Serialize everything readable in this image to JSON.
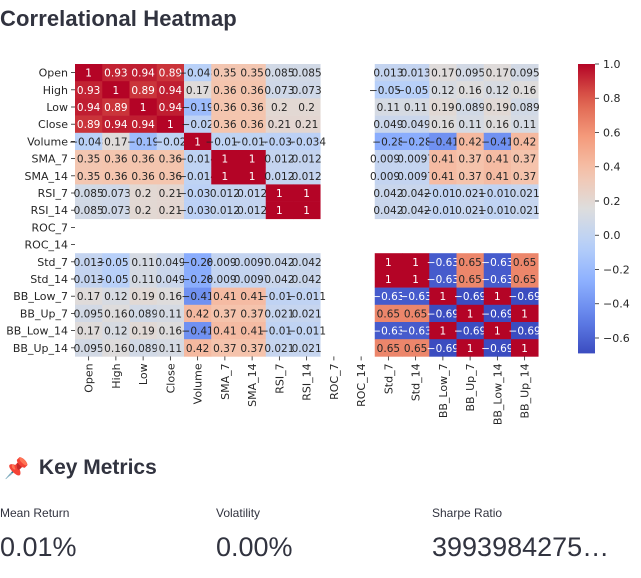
{
  "page_title": "Correlational Heatmap",
  "chart_data": {
    "type": "heatmap",
    "title": "",
    "labels": [
      "Open",
      "High",
      "Low",
      "Close",
      "Volume",
      "SMA_7",
      "SMA_14",
      "RSI_7",
      "RSI_14",
      "ROC_7",
      "ROC_14",
      "Std_7",
      "Std_14",
      "BB_Low_7",
      "BB_Up_7",
      "BB_Low_14",
      "BB_Up_14"
    ],
    "values": [
      [
        1,
        0.93,
        0.94,
        0.89,
        -0.048,
        0.35,
        0.35,
        0.085,
        0.085,
        null,
        null,
        0.013,
        0.013,
        0.17,
        0.095,
        0.17,
        0.095
      ],
      [
        0.93,
        1,
        0.89,
        0.94,
        0.17,
        0.36,
        0.36,
        0.073,
        0.073,
        null,
        null,
        -0.057,
        -0.057,
        0.12,
        0.16,
        0.12,
        0.16
      ],
      [
        0.94,
        0.89,
        1,
        0.94,
        -0.19,
        0.36,
        0.36,
        0.2,
        0.2,
        null,
        null,
        0.11,
        0.11,
        0.19,
        0.089,
        0.19,
        0.089
      ],
      [
        0.89,
        0.94,
        0.94,
        1,
        -0.02,
        0.36,
        0.36,
        0.21,
        0.21,
        null,
        null,
        0.049,
        0.049,
        0.16,
        0.11,
        0.16,
        0.11
      ],
      [
        -0.048,
        0.17,
        -0.19,
        -0.02,
        1,
        -0.014,
        -0.014,
        -0.034,
        -0.034,
        null,
        null,
        -0.28,
        -0.28,
        -0.41,
        0.42,
        -0.41,
        0.42
      ],
      [
        0.35,
        0.36,
        0.36,
        0.36,
        -0.014,
        1,
        1,
        0.012,
        0.012,
        null,
        null,
        0.0097,
        0.0097,
        0.41,
        0.37,
        0.41,
        0.37
      ],
      [
        0.35,
        0.36,
        0.36,
        0.36,
        -0.014,
        1,
        1,
        0.012,
        0.012,
        null,
        null,
        0.0097,
        0.0097,
        0.41,
        0.37,
        0.41,
        0.37
      ],
      [
        0.085,
        0.073,
        0.2,
        0.21,
        -0.034,
        0.012,
        0.012,
        1,
        1,
        null,
        null,
        0.042,
        0.042,
        -0.011,
        0.021,
        -0.011,
        0.021
      ],
      [
        0.085,
        0.073,
        0.2,
        0.21,
        -0.034,
        0.012,
        0.012,
        1,
        1,
        null,
        null,
        0.042,
        0.042,
        -0.011,
        0.021,
        -0.011,
        0.021
      ],
      [
        null,
        null,
        null,
        null,
        null,
        null,
        null,
        null,
        null,
        null,
        null,
        null,
        null,
        null,
        null,
        null,
        null
      ],
      [
        null,
        null,
        null,
        null,
        null,
        null,
        null,
        null,
        null,
        null,
        null,
        null,
        null,
        null,
        null,
        null,
        null
      ],
      [
        0.013,
        -0.057,
        0.11,
        0.049,
        -0.28,
        0.0097,
        0.0097,
        0.042,
        0.042,
        null,
        null,
        1,
        1,
        -0.63,
        0.65,
        -0.63,
        0.65
      ],
      [
        0.013,
        -0.057,
        0.11,
        0.049,
        -0.28,
        0.0097,
        0.0097,
        0.042,
        0.042,
        null,
        null,
        1,
        1,
        -0.63,
        0.65,
        -0.63,
        0.65
      ],
      [
        0.17,
        0.12,
        0.19,
        0.16,
        -0.41,
        0.41,
        0.41,
        -0.011,
        -0.011,
        null,
        null,
        -0.63,
        -0.63,
        1,
        -0.69,
        1,
        -0.69
      ],
      [
        0.095,
        0.16,
        0.089,
        0.11,
        0.42,
        0.37,
        0.37,
        0.021,
        0.021,
        null,
        null,
        0.65,
        0.65,
        -0.69,
        1,
        -0.69,
        1
      ],
      [
        0.17,
        0.12,
        0.19,
        0.16,
        -0.41,
        0.41,
        0.41,
        -0.011,
        -0.011,
        null,
        null,
        -0.63,
        -0.63,
        1,
        -0.69,
        1,
        -0.69
      ],
      [
        0.095,
        0.16,
        0.089,
        0.11,
        0.42,
        0.37,
        0.37,
        0.021,
        0.021,
        null,
        null,
        0.65,
        0.65,
        -0.69,
        1,
        -0.69,
        1
      ]
    ],
    "colorbar": {
      "vmin": -0.69,
      "vmax": 1.0,
      "ticks": [
        1.0,
        0.8,
        0.6,
        0.4,
        0.2,
        0.0,
        -0.2,
        -0.4,
        -0.6
      ],
      "tick_labels": [
        "1.0",
        "0.8",
        "0.6",
        "0.4",
        "0.2",
        "0.0",
        "−0.2",
        "−0.4",
        "−0.6"
      ],
      "colormap": "coolwarm"
    }
  },
  "metrics": {
    "heading": "Key Metrics",
    "heading_icon": "pushpin-icon",
    "items": [
      {
        "label": "Mean Return",
        "value": "0.01%"
      },
      {
        "label": "Volatility",
        "value": "0.00%"
      },
      {
        "label": "Sharpe Ratio",
        "value": "3993984275…"
      }
    ]
  }
}
